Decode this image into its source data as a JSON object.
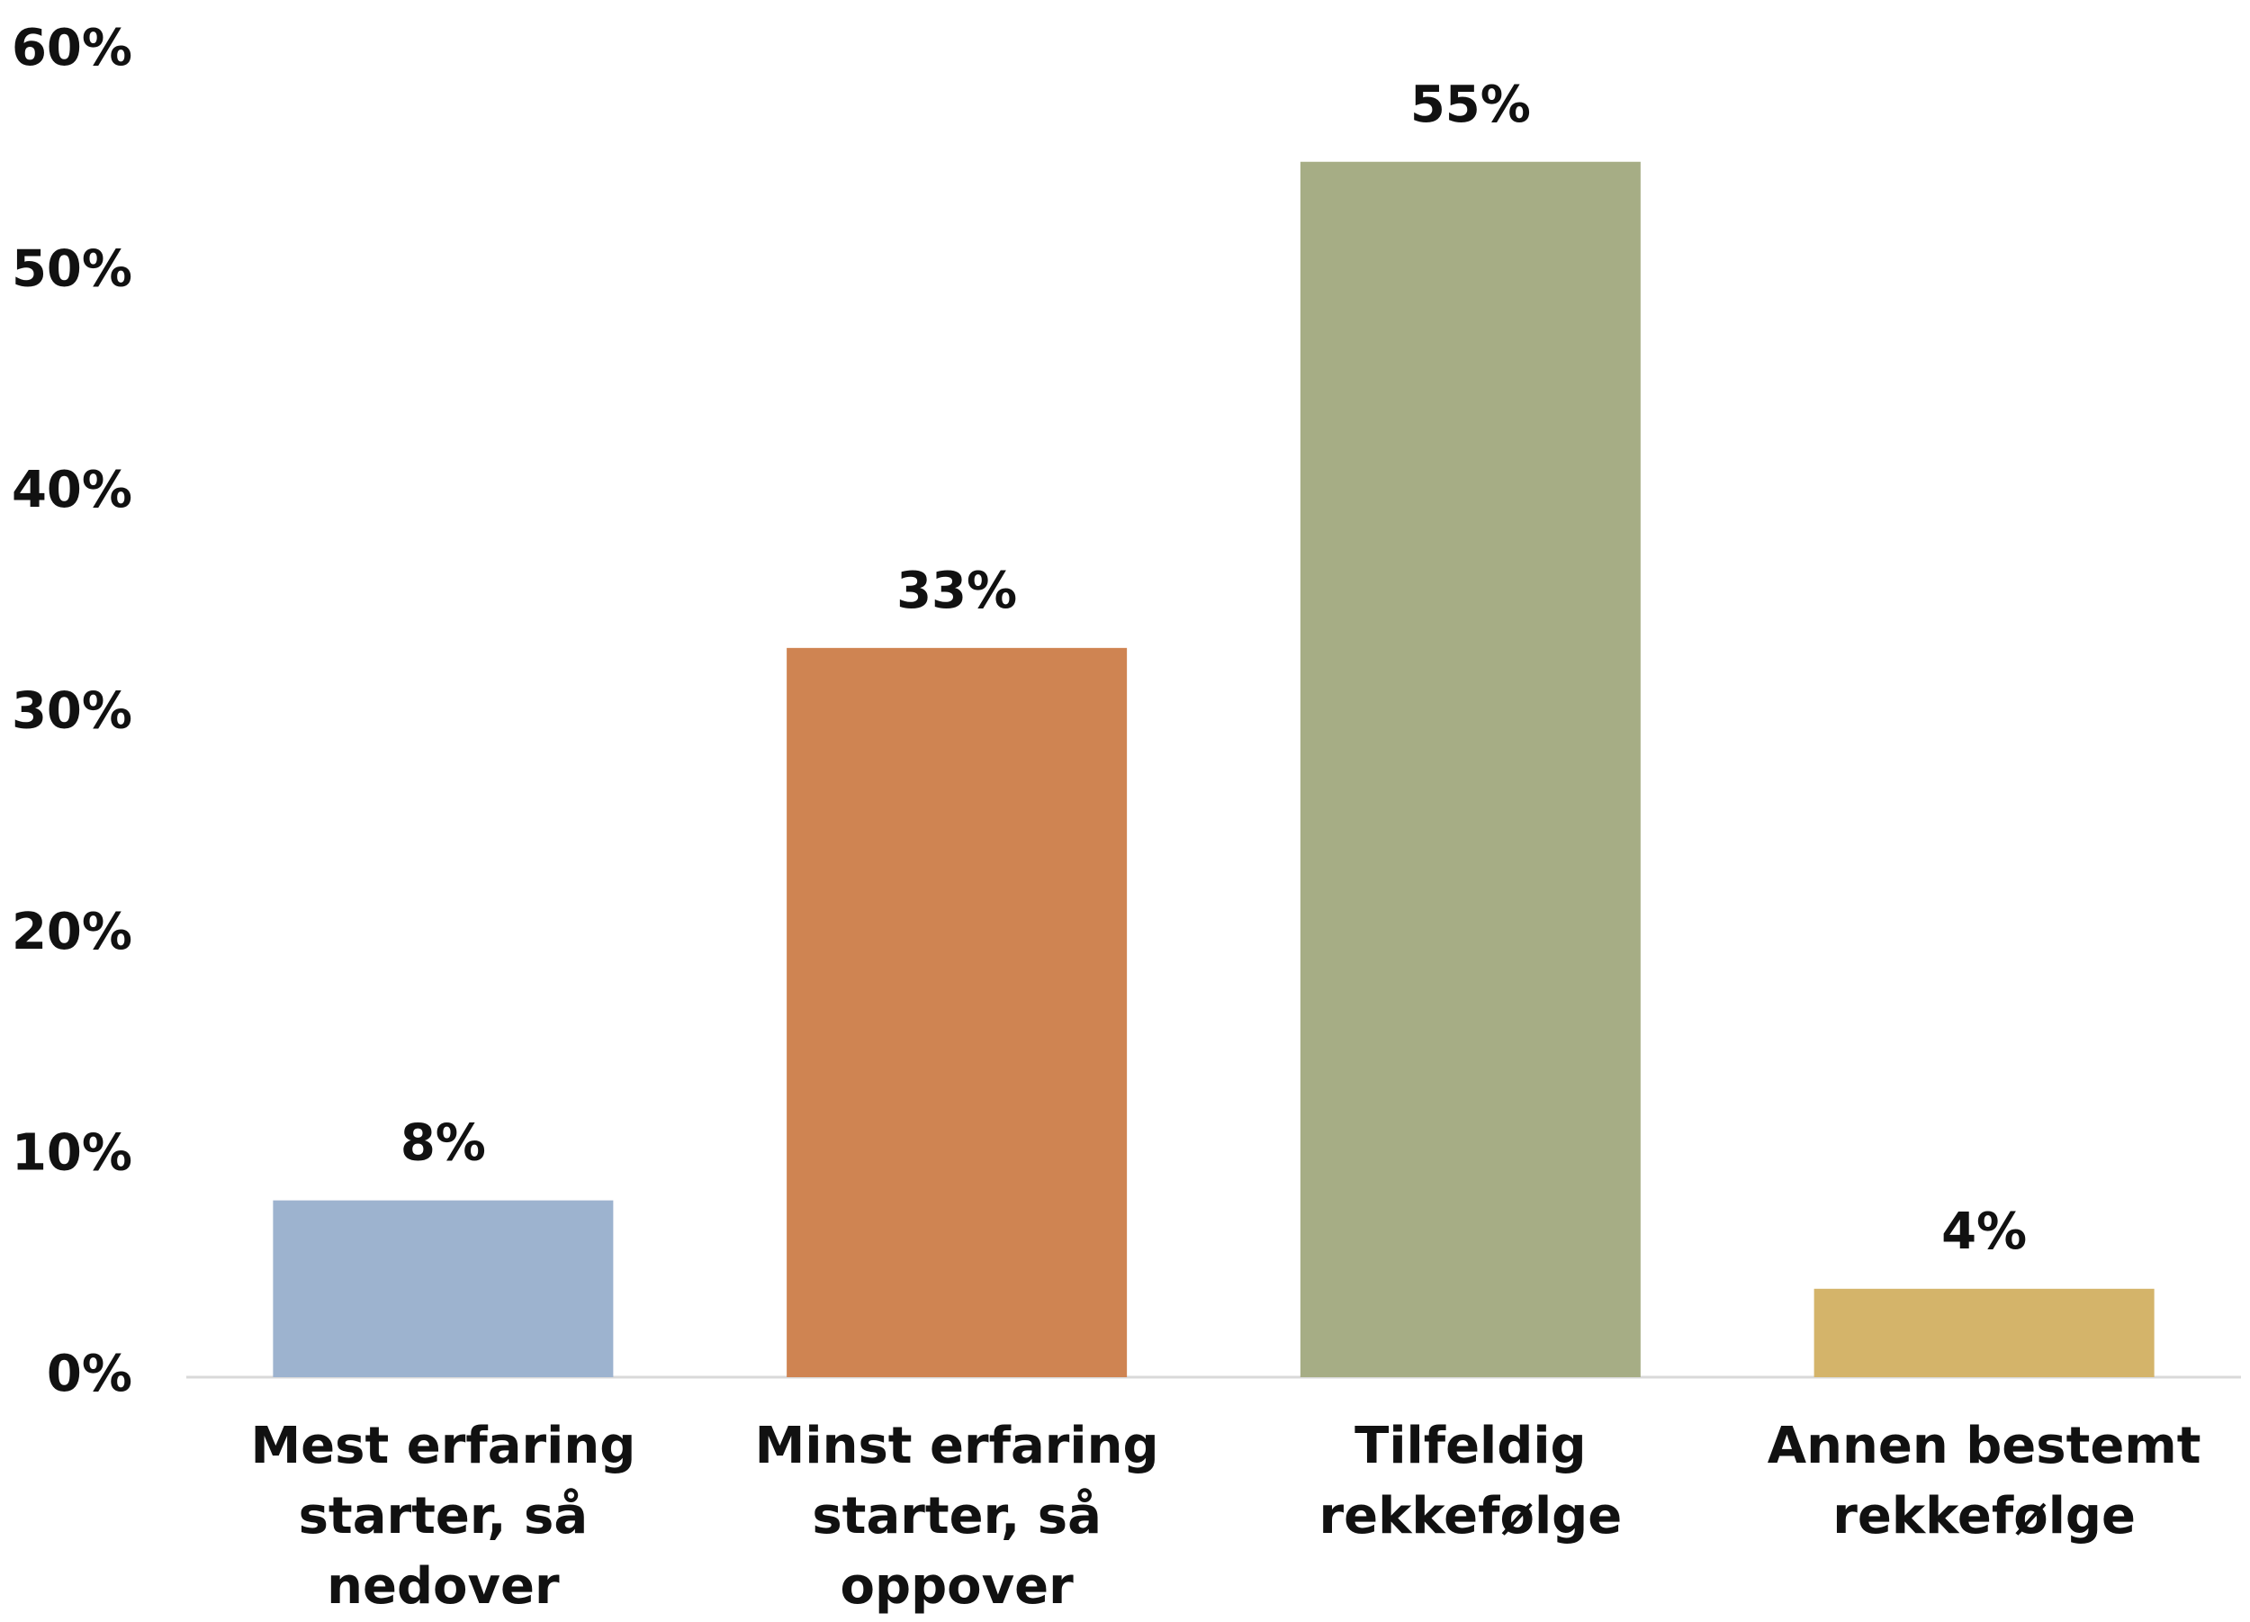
{
  "chart_data": {
    "type": "bar",
    "categories": [
      "Mest erfaring starter, så nedover",
      "Minst erfaring starter, så oppover",
      "Tilfeldig rekkefølge",
      "Annen bestemt rekkefølge"
    ],
    "values": [
      8,
      33,
      55,
      4
    ],
    "value_labels": [
      "8%",
      "33%",
      "55%",
      "4%"
    ],
    "colors": [
      "#9db3cf",
      "#cf8452",
      "#a6ad85",
      "#d4b46a"
    ],
    "ylim": [
      0,
      60
    ],
    "yticks": [
      {
        "value": 0,
        "label": "0%"
      },
      {
        "value": 10,
        "label": "10%"
      },
      {
        "value": 20,
        "label": "20%"
      },
      {
        "value": 30,
        "label": "30%"
      },
      {
        "value": 40,
        "label": "40%"
      },
      {
        "value": 50,
        "label": "50%"
      },
      {
        "value": 60,
        "label": "60%"
      }
    ],
    "grid": false
  }
}
